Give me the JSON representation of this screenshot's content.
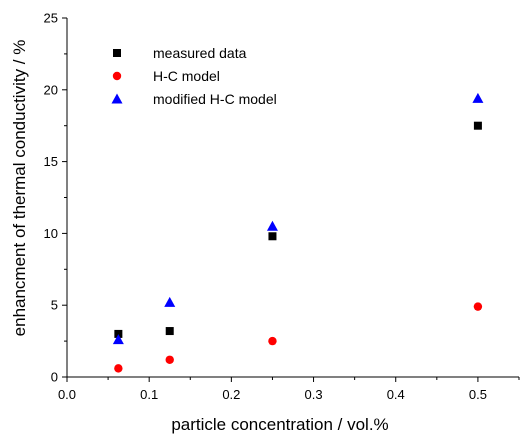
{
  "chart_data": {
    "type": "scatter",
    "title": "",
    "xlabel": "particle concentration / vol.%",
    "ylabel": "enhancment of thermal conductivity / %",
    "xlim": [
      0.0,
      0.55
    ],
    "ylim": [
      0,
      25
    ],
    "xticks": [
      "0.0",
      "0.1",
      "0.2",
      "0.3",
      "0.4",
      "0.5"
    ],
    "yticks": [
      "0",
      "5",
      "10",
      "15",
      "20",
      "25"
    ],
    "grid": false,
    "legend_position": "top-left",
    "series": [
      {
        "name": "measured data",
        "marker": "square",
        "color": "#000000",
        "points": [
          [
            0.0625,
            3.0
          ],
          [
            0.125,
            3.2
          ],
          [
            0.25,
            9.8
          ],
          [
            0.5,
            17.5
          ]
        ]
      },
      {
        "name": "H-C model",
        "marker": "circle",
        "color": "#ff0000",
        "points": [
          [
            0.0625,
            0.6
          ],
          [
            0.125,
            1.2
          ],
          [
            0.25,
            2.5
          ],
          [
            0.5,
            4.9
          ]
        ]
      },
      {
        "name": "modified H-C model",
        "marker": "triangle",
        "color": "#0000ff",
        "points": [
          [
            0.0625,
            2.6
          ],
          [
            0.125,
            5.2
          ],
          [
            0.25,
            10.5
          ],
          [
            0.5,
            19.4
          ]
        ]
      }
    ]
  }
}
